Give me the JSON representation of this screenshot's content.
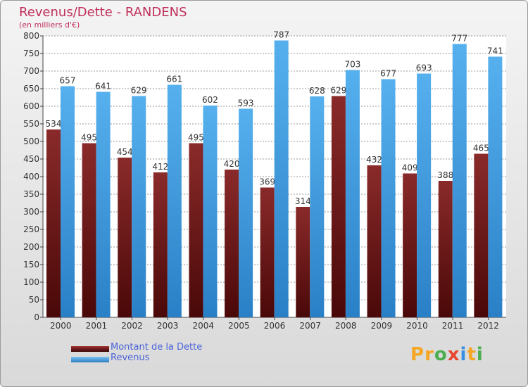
{
  "chart_data": {
    "type": "bar",
    "title": "Revenus/Dette - RANDENS",
    "subtitle": "(en milliers d'€)",
    "categories": [
      "2000",
      "2001",
      "2002",
      "2003",
      "2004",
      "2005",
      "2006",
      "2007",
      "2008",
      "2009",
      "2010",
      "2011",
      "2012"
    ],
    "series": [
      {
        "name": "Montant de la Dette",
        "color": "#7a1e1e",
        "values": [
          534,
          495,
          454,
          412,
          495,
          420,
          369,
          314,
          629,
          432,
          409,
          388,
          465
        ]
      },
      {
        "name": "Revenus",
        "color": "#4ea6e8",
        "values": [
          657,
          641,
          629,
          661,
          602,
          593,
          787,
          628,
          703,
          677,
          693,
          777,
          741
        ]
      }
    ],
    "ylim": [
      0,
      800
    ],
    "yticks": [
      0,
      50,
      100,
      150,
      200,
      250,
      300,
      350,
      400,
      450,
      500,
      550,
      600,
      650,
      700,
      750,
      800
    ],
    "grid": true,
    "legend_position": "bottom-left"
  },
  "logo": {
    "text": "Proxiti"
  }
}
